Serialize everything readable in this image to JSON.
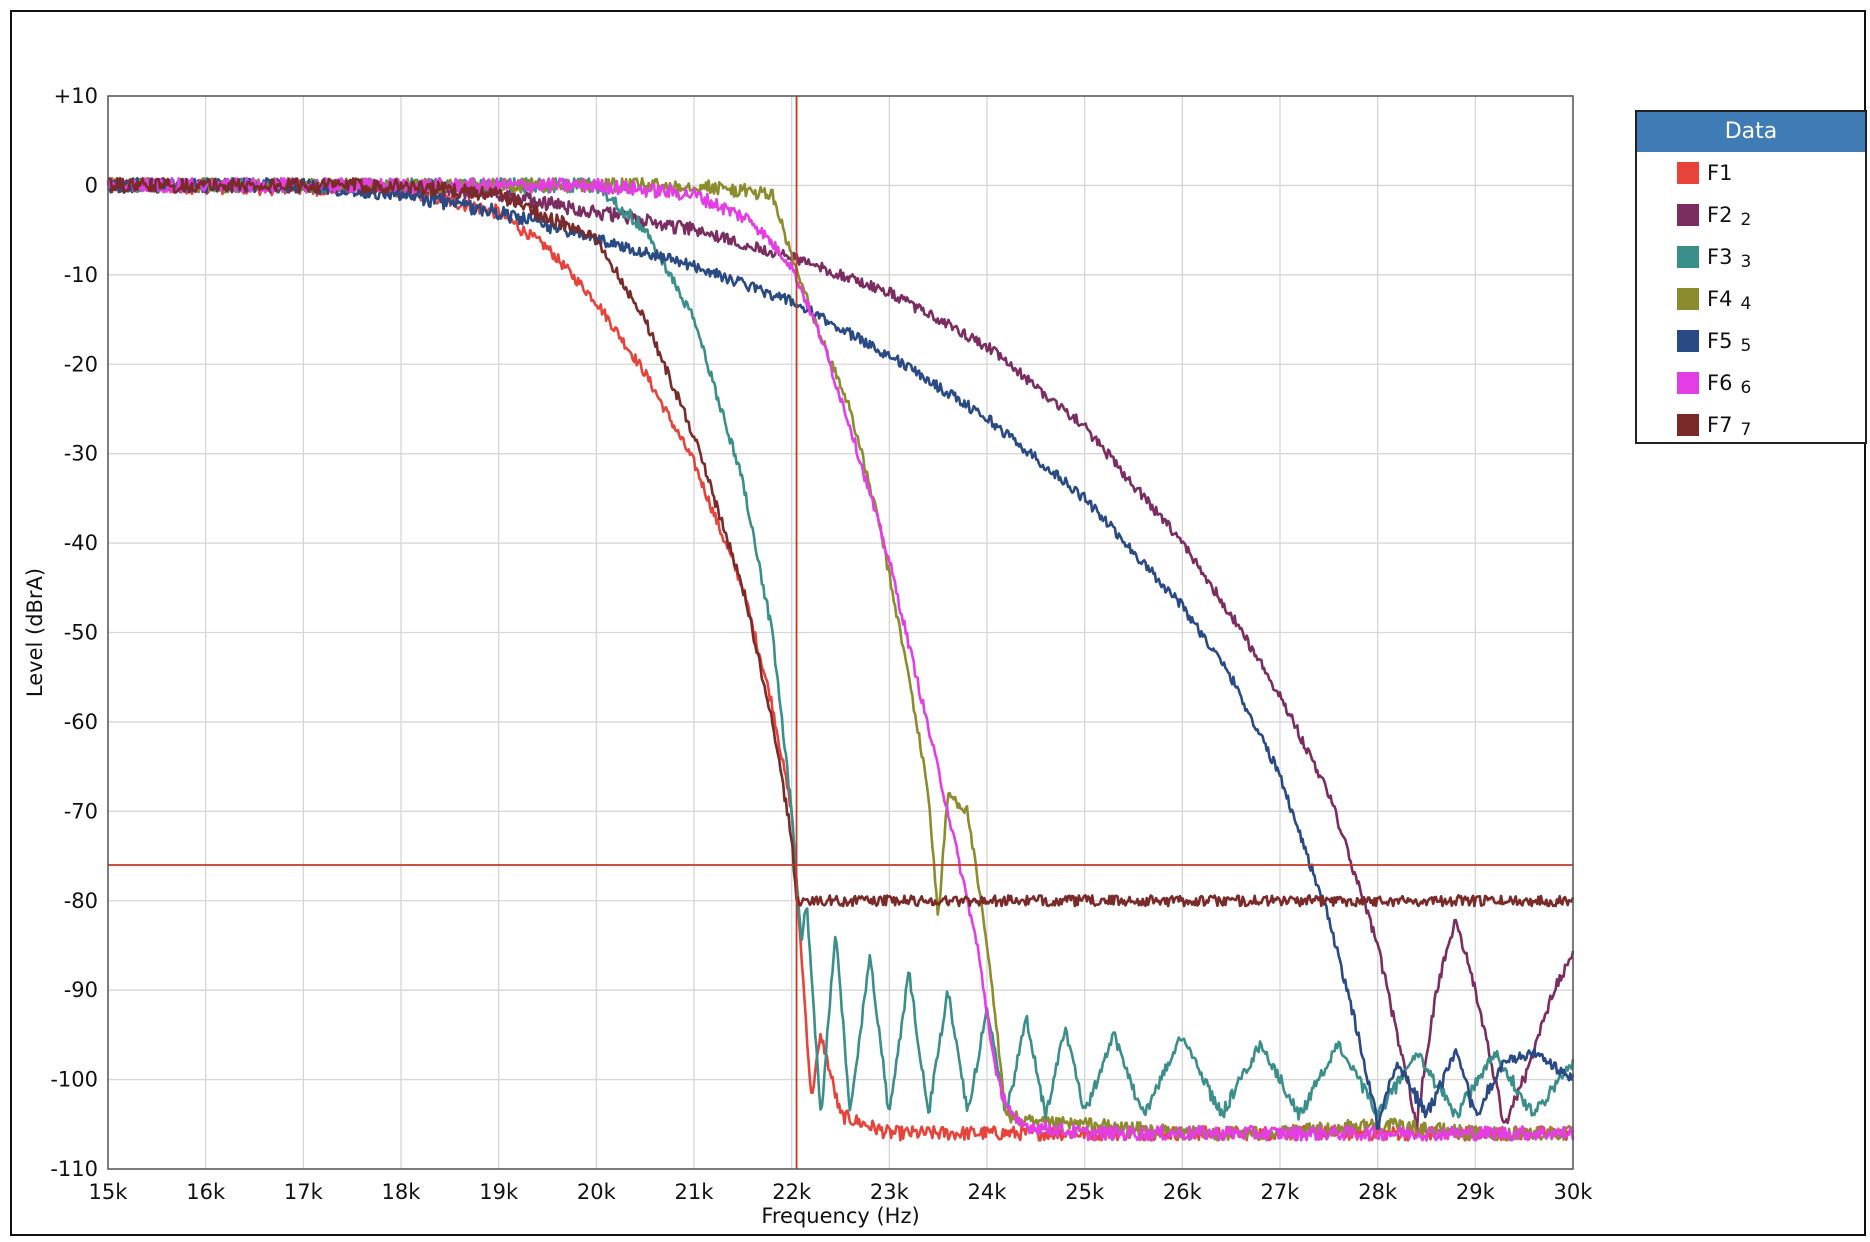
{
  "chart_data": {
    "type": "line",
    "title": "",
    "xlabel": "Frequency (Hz)",
    "ylabel": "Level (dBrA)",
    "xlim": [
      15000,
      30000
    ],
    "ylim": [
      -110,
      10
    ],
    "grid": true,
    "x_ticks": [
      15000,
      16000,
      17000,
      18000,
      19000,
      20000,
      21000,
      22000,
      23000,
      24000,
      25000,
      26000,
      27000,
      28000,
      29000,
      30000
    ],
    "x_tick_labels": [
      "15k",
      "16k",
      "17k",
      "18k",
      "19k",
      "20k",
      "21k",
      "22k",
      "23k",
      "24k",
      "25k",
      "26k",
      "27k",
      "28k",
      "29k",
      "30k"
    ],
    "y_ticks": [
      10,
      0,
      -10,
      -20,
      -30,
      -40,
      -50,
      -60,
      -70,
      -80,
      -90,
      -100,
      -110
    ],
    "y_tick_labels": [
      "+10",
      "0",
      "-10",
      "-20",
      "-30",
      "-40",
      "-50",
      "-60",
      "-70",
      "-80",
      "-90",
      "-100",
      "-110"
    ],
    "cursor": {
      "x": 22050,
      "y": -76,
      "color": "#c0392b"
    },
    "legend": {
      "title": "Data",
      "placement": "right",
      "header_color": "#3f7cb5"
    },
    "series": [
      {
        "name": "F1",
        "sub": "",
        "color": "#e8433a",
        "x": [
          15000,
          18000,
          19000,
          19500,
          20000,
          20500,
          21000,
          21500,
          21800,
          22000,
          22050,
          22100,
          22200,
          22300,
          22500,
          23000,
          24000,
          25000,
          26000,
          27000,
          28000,
          29000,
          30000
        ],
        "y": [
          0,
          -0.5,
          -3,
          -7,
          -13,
          -21,
          -31,
          -45,
          -58,
          -70,
          -78,
          -86,
          -102,
          -95,
          -104,
          -106,
          -106,
          -106,
          -106,
          -106,
          -106,
          -106,
          -106
        ]
      },
      {
        "name": "F2",
        "sub": "2",
        "color": "#7b2d62",
        "x": [
          15000,
          17000,
          19000,
          20000,
          21000,
          22000,
          23000,
          24000,
          25000,
          26000,
          26500,
          27000,
          27500,
          28000,
          28200,
          28400,
          28600,
          28800,
          29000,
          29300,
          29500,
          29800,
          30000
        ],
        "y": [
          0,
          0,
          -1,
          -3,
          -5,
          -8,
          -12,
          -18,
          -27,
          -40,
          -48,
          -57,
          -68,
          -85,
          -95,
          -105,
          -90,
          -82,
          -90,
          -105,
          -100,
          -90,
          -86
        ]
      },
      {
        "name": "F3",
        "sub": "3",
        "color": "#3a8f8a",
        "x": [
          15000,
          19000,
          20000,
          20500,
          21000,
          21500,
          21800,
          22000,
          22100,
          22150,
          22300,
          22450,
          22600,
          22800,
          23000,
          23200,
          23400,
          23600,
          23800,
          24000,
          24200,
          24400,
          24600,
          24800,
          25000,
          25300,
          25600,
          26000,
          26400,
          26800,
          27200,
          27600,
          28000,
          28400,
          28800,
          29200,
          29600,
          30000
        ],
        "y": [
          0,
          0,
          0,
          -5,
          -15,
          -33,
          -50,
          -70,
          -85,
          -80,
          -104,
          -83,
          -104,
          -86,
          -104,
          -88,
          -104,
          -90,
          -104,
          -92,
          -104,
          -93,
          -104,
          -94,
          -104,
          -95,
          -104,
          -95,
          -104,
          -96,
          -104,
          -96,
          -104,
          -97,
          -104,
          -97,
          -104,
          -98
        ]
      },
      {
        "name": "F4",
        "sub": "4",
        "color": "#8c8c2e",
        "x": [
          15000,
          19000,
          21000,
          21800,
          22000,
          22300,
          22600,
          22900,
          23200,
          23400,
          23500,
          23600,
          23800,
          24000,
          24200,
          24500,
          25000,
          26000,
          27000,
          28000,
          29000,
          30000
        ],
        "y": [
          0,
          0,
          0,
          -1,
          -8,
          -17,
          -25,
          -38,
          -55,
          -68,
          -82,
          -68,
          -70,
          -85,
          -104,
          -105,
          -105,
          -106,
          -106,
          -105,
          -106,
          -106
        ]
      },
      {
        "name": "F5",
        "sub": "5",
        "color": "#2a4a85",
        "x": [
          15000,
          17000,
          18000,
          19000,
          20000,
          21000,
          22000,
          23000,
          24000,
          25000,
          26000,
          26500,
          27000,
          27500,
          27800,
          28000,
          28200,
          28500,
          28800,
          29000,
          29300,
          29600,
          30000
        ],
        "y": [
          0,
          0,
          -1,
          -3,
          -6,
          -9,
          -13,
          -19,
          -26,
          -35,
          -47,
          -55,
          -66,
          -82,
          -95,
          -105,
          -98,
          -104,
          -97,
          -104,
          -98,
          -97,
          -100
        ]
      },
      {
        "name": "F6",
        "sub": "6",
        "color": "#e53de5",
        "x": [
          15000,
          19000,
          20000,
          21000,
          21600,
          22000,
          22300,
          22600,
          23000,
          23300,
          23600,
          23900,
          24100,
          24300,
          25000,
          26000,
          27000,
          28000,
          29000,
          30000
        ],
        "y": [
          0,
          0,
          0,
          -1,
          -4,
          -9,
          -17,
          -27,
          -42,
          -56,
          -70,
          -85,
          -100,
          -105,
          -106,
          -106,
          -106,
          -106,
          -106,
          -106
        ]
      },
      {
        "name": "F7",
        "sub": "7",
        "color": "#7a2a28",
        "x": [
          15000,
          18000,
          19000,
          20000,
          20500,
          21000,
          21500,
          21800,
          22000,
          22050,
          22200,
          23000,
          24000,
          25000,
          26000,
          27000,
          28000,
          29000,
          30000
        ],
        "y": [
          0,
          0,
          -1,
          -6,
          -15,
          -28,
          -45,
          -60,
          -73,
          -80,
          -80,
          -80,
          -80,
          -80,
          -80,
          -80,
          -80,
          -80,
          -80
        ]
      }
    ]
  }
}
